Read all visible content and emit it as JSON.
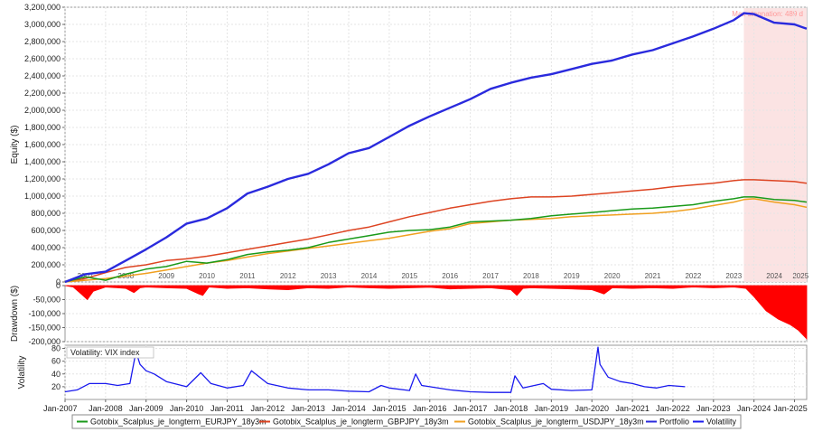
{
  "chart_data": [
    {
      "type": "line",
      "ylabel": "Equity ($)",
      "ylim": [
        0,
        3200000
      ],
      "yticks": [
        0,
        200000,
        400000,
        600000,
        800000,
        1000000,
        1200000,
        1400000,
        1600000,
        1800000,
        2000000,
        2200000,
        2400000,
        2600000,
        2800000,
        3000000,
        3200000
      ],
      "ytick_labels": [
        "0",
        "200,000",
        "400,000",
        "600,000",
        "800,000",
        "1,000,000",
        "1,200,000",
        "1,400,000",
        "1,600,000",
        "1,800,000",
        "2,000,000",
        "2,200,000",
        "2,400,000",
        "2,600,000",
        "2,800,000",
        "3,000,000",
        "3,200,000"
      ],
      "year_labels": [
        "2007",
        "2008",
        "2009",
        "2010",
        "2011",
        "2012",
        "2013",
        "2014",
        "2015",
        "2016",
        "2017",
        "2018",
        "2019",
        "2020",
        "2021",
        "2022",
        "2023",
        "2024",
        "2025"
      ],
      "grid": true,
      "highlight": {
        "x_start": 2023.75,
        "x_end": 2025.3,
        "label": "Max stagnation: 489 d",
        "color": "#fbe3e3"
      },
      "x": [
        2007.0,
        2007.5,
        2008.0,
        2008.5,
        2009.0,
        2009.5,
        2010.0,
        2010.5,
        2011.0,
        2011.5,
        2012.0,
        2012.5,
        2013.0,
        2013.5,
        2014.0,
        2014.5,
        2015.0,
        2015.5,
        2016.0,
        2016.5,
        2017.0,
        2017.5,
        2018.0,
        2018.5,
        2019.0,
        2019.5,
        2020.0,
        2020.5,
        2021.0,
        2021.5,
        2022.0,
        2022.5,
        2023.0,
        2023.5,
        2023.75,
        2024.0,
        2024.5,
        2025.0,
        2025.3
      ],
      "series": [
        {
          "name": "Portfolio",
          "color": "#2a2add",
          "values": [
            0,
            90000,
            120000,
            250000,
            380000,
            520000,
            680000,
            740000,
            860000,
            1030000,
            1110000,
            1200000,
            1260000,
            1370000,
            1500000,
            1560000,
            1690000,
            1820000,
            1930000,
            2030000,
            2130000,
            2250000,
            2320000,
            2380000,
            2420000,
            2480000,
            2540000,
            2580000,
            2650000,
            2700000,
            2780000,
            2860000,
            2950000,
            3050000,
            3130000,
            3120000,
            3020000,
            3000000,
            2950000
          ]
        },
        {
          "name": "Gotobix_Scalplus_je_longterm_GBPJPY_18y3m",
          "color": "#dd4422",
          "values": [
            0,
            40000,
            110000,
            170000,
            200000,
            250000,
            270000,
            300000,
            340000,
            380000,
            420000,
            460000,
            500000,
            550000,
            600000,
            640000,
            700000,
            760000,
            810000,
            860000,
            900000,
            940000,
            970000,
            990000,
            990000,
            1000000,
            1020000,
            1040000,
            1060000,
            1080000,
            1110000,
            1130000,
            1150000,
            1180000,
            1190000,
            1190000,
            1180000,
            1170000,
            1150000
          ]
        },
        {
          "name": "Gotobix_Scalplus_je_longterm_EURJPY_18y3m",
          "color": "#1a9a1a",
          "values": [
            0,
            60000,
            20000,
            90000,
            150000,
            180000,
            240000,
            220000,
            260000,
            320000,
            350000,
            370000,
            400000,
            460000,
            500000,
            540000,
            580000,
            600000,
            610000,
            640000,
            700000,
            710000,
            720000,
            740000,
            770000,
            790000,
            810000,
            830000,
            850000,
            860000,
            880000,
            900000,
            940000,
            970000,
            990000,
            990000,
            960000,
            950000,
            930000
          ]
        },
        {
          "name": "Gotobix_Scalplus_je_longterm_USDJPY_18y3m",
          "color": "#f0a020",
          "values": [
            0,
            20000,
            40000,
            70000,
            100000,
            140000,
            180000,
            220000,
            250000,
            290000,
            330000,
            360000,
            390000,
            420000,
            450000,
            480000,
            510000,
            550000,
            590000,
            620000,
            680000,
            700000,
            720000,
            730000,
            740000,
            760000,
            770000,
            780000,
            790000,
            800000,
            820000,
            850000,
            890000,
            930000,
            960000,
            970000,
            930000,
            900000,
            870000
          ]
        }
      ]
    },
    {
      "type": "area",
      "ylabel": "Drawdown ($)",
      "ylim": [
        -200000,
        0
      ],
      "yticks": [
        0,
        -50000,
        -100000,
        -150000,
        -200000
      ],
      "ytick_labels": [
        "0",
        "-50,000",
        "-100,000",
        "-150,000",
        "-200,000"
      ],
      "color": "#ff0000",
      "x": [
        2007.0,
        2007.2,
        2007.4,
        2007.55,
        2007.7,
        2008.0,
        2008.5,
        2008.7,
        2008.85,
        2009.0,
        2009.5,
        2010.0,
        2010.3,
        2010.4,
        2010.55,
        2011.0,
        2011.5,
        2012.0,
        2012.5,
        2013.0,
        2013.5,
        2014.0,
        2014.5,
        2015.0,
        2015.5,
        2016.0,
        2016.5,
        2017.0,
        2017.5,
        2018.0,
        2018.15,
        2018.3,
        2018.5,
        2019.0,
        2019.5,
        2020.0,
        2020.3,
        2020.5,
        2021.0,
        2021.5,
        2022.0,
        2022.5,
        2023.0,
        2023.5,
        2023.8,
        2024.0,
        2024.3,
        2024.6,
        2024.9,
        2025.1,
        2025.3
      ],
      "values": [
        0,
        -5000,
        -30000,
        -50000,
        -20000,
        -5000,
        -10000,
        -25000,
        -8000,
        -5000,
        -8000,
        -10000,
        -30000,
        -35000,
        -5000,
        -10000,
        -8000,
        -12000,
        -15000,
        -8000,
        -10000,
        -5000,
        -8000,
        -10000,
        -8000,
        -6000,
        -12000,
        -10000,
        -8000,
        -15000,
        -35000,
        -10000,
        -8000,
        -10000,
        -12000,
        -15000,
        -30000,
        -8000,
        -10000,
        -8000,
        -10000,
        -5000,
        -8000,
        -5000,
        -10000,
        -40000,
        -90000,
        -120000,
        -140000,
        -160000,
        -190000
      ]
    },
    {
      "type": "line",
      "title": "Volatility: VIX index",
      "ylabel": "Volatility",
      "ylim": [
        0,
        85
      ],
      "yticks": [
        20,
        40,
        60,
        80
      ],
      "ytick_labels": [
        "20",
        "40",
        "60",
        "80"
      ],
      "color": "#1a1aee",
      "x": [
        2007.0,
        2007.3,
        2007.6,
        2008.0,
        2008.3,
        2008.6,
        2008.75,
        2008.85,
        2009.0,
        2009.2,
        2009.5,
        2010.0,
        2010.35,
        2010.6,
        2011.0,
        2011.4,
        2011.6,
        2011.8,
        2012.0,
        2012.5,
        2013.0,
        2013.5,
        2014.0,
        2014.5,
        2014.8,
        2015.0,
        2015.5,
        2015.65,
        2015.8,
        2016.0,
        2016.5,
        2017.0,
        2017.5,
        2018.0,
        2018.1,
        2018.3,
        2018.8,
        2019.0,
        2019.5,
        2020.0,
        2020.15,
        2020.2,
        2020.4,
        2020.7,
        2021.0,
        2021.3,
        2021.6,
        2021.9,
        2022.3
      ],
      "values": [
        12,
        15,
        25,
        25,
        22,
        25,
        75,
        55,
        45,
        40,
        28,
        20,
        42,
        25,
        18,
        22,
        45,
        35,
        25,
        18,
        15,
        15,
        13,
        12,
        22,
        18,
        14,
        40,
        22,
        20,
        15,
        12,
        11,
        11,
        37,
        18,
        25,
        16,
        14,
        15,
        82,
        55,
        35,
        28,
        25,
        20,
        18,
        22,
        20
      ]
    }
  ],
  "x_axis": {
    "labels": [
      "Jan-2007",
      "Jan-2008",
      "Jan-2009",
      "Jan-2010",
      "Jan-2011",
      "Jan-2012",
      "Jan-2013",
      "Jan-2014",
      "Jan-2015",
      "Jan-2016",
      "Jan-2017",
      "Jan-2018",
      "Jan-2019",
      "Jan-2020",
      "Jan-2021",
      "Jan-2022",
      "Jan-2023",
      "Jan-2024",
      "Jan-2025"
    ],
    "xlim": [
      2007.0,
      2025.3
    ]
  },
  "legend": {
    "placement": "bottom",
    "items": [
      {
        "label": "Gotobix_Scalplus_je_longterm_EURJPY_18y3m",
        "color": "#1a9a1a"
      },
      {
        "label": "Gotobix_Scalplus_je_longterm_GBPJPY_18y3m",
        "color": "#dd4422"
      },
      {
        "label": "Gotobix_Scalplus_je_longterm_USDJPY_18y3m",
        "color": "#f0a020"
      },
      {
        "label": "Portfolio",
        "color": "#2a2add"
      },
      {
        "label": "Volatility",
        "color": "#1a1aee"
      }
    ]
  }
}
